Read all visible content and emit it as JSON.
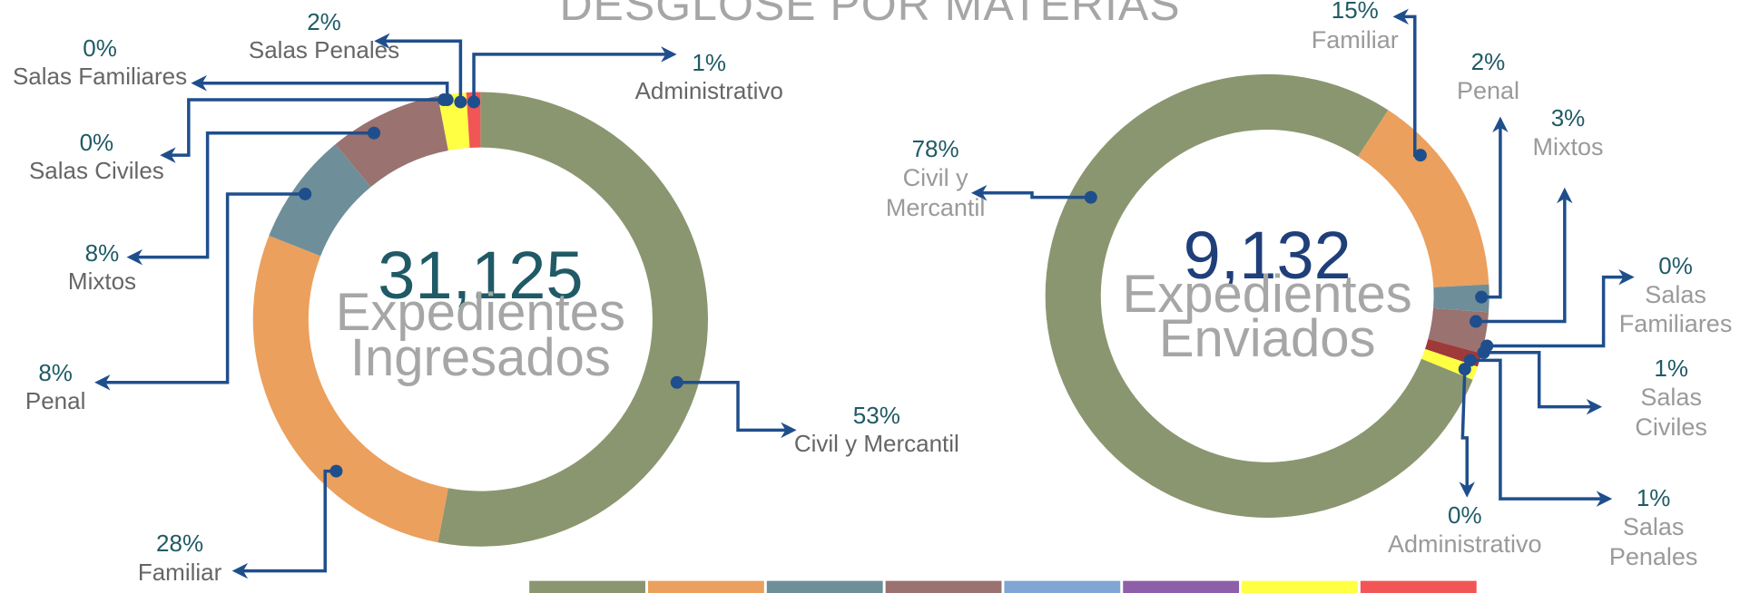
{
  "title": "DESGLOSE POR MATERIAS",
  "chart_data": [
    {
      "type": "pie",
      "donut": true,
      "center_value": "31,125",
      "center_label": "Expedientes Ingresados",
      "categories": [
        "Civil y Mercantil",
        "Familiar",
        "Penal",
        "Mixtos",
        "Salas Civiles",
        "Salas Familiares",
        "Salas Penales",
        "Administrativo"
      ],
      "values": [
        53,
        28,
        8,
        8,
        0,
        0,
        2,
        1
      ],
      "value_labels": [
        "53%",
        "28%",
        "8%",
        "8%",
        "0%",
        "0%",
        "2%",
        "1%"
      ],
      "colors": [
        "#8a9670",
        "#eba05e",
        "#6e8f9a",
        "#9a7270",
        "#7fa6d4",
        "#8e5fa8",
        "#ffff44",
        "#f25555"
      ]
    },
    {
      "type": "pie",
      "donut": true,
      "center_value": "9,132",
      "center_label": "Expedientes Enviados",
      "categories": [
        "Familiar",
        "Penal",
        "Mixtos",
        "Salas Familiares",
        "Salas Civiles",
        "Salas Penales",
        "Administrativo",
        "Civil y Mercantil"
      ],
      "values": [
        15,
        2,
        3,
        0,
        1,
        1,
        0,
        78
      ],
      "value_labels": [
        "15%",
        "2%",
        "3%",
        "0%",
        "1%",
        "1%",
        "0%",
        "78%"
      ],
      "colors": [
        "#eba05e",
        "#6e8f9a",
        "#9a7270",
        "#8e5fa8",
        "#9e3a3a",
        "#ffff44",
        "#f25555",
        "#8a9670"
      ]
    }
  ]
}
